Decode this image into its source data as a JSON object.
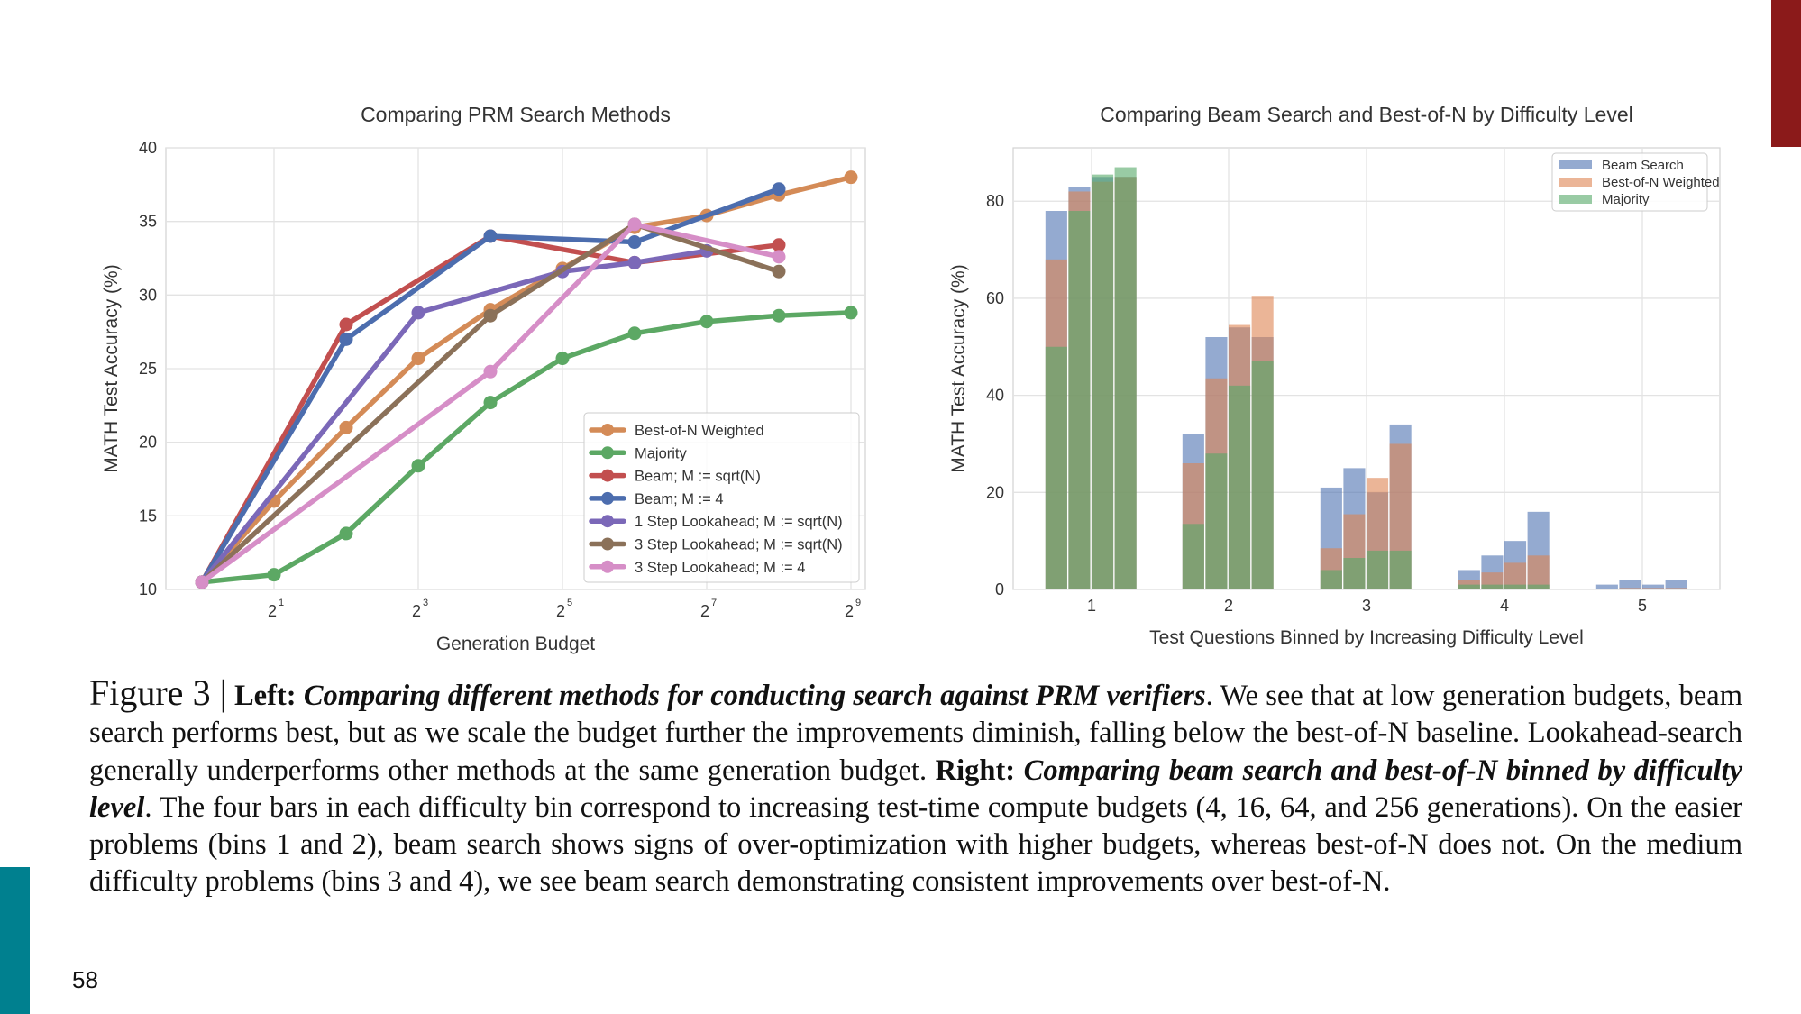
{
  "page": {
    "number": "58"
  },
  "colors": {
    "best_of_n_weighted": "#d48b57",
    "majority": "#5ca864",
    "beam_sqrt": "#c24f4f",
    "beam_4": "#4c6dae",
    "lookahead1_sqrt": "#7b68b8",
    "lookahead3_sqrt": "#8b7159",
    "lookahead3_4": "#d68ec7",
    "beam_bar": "#4c72b0",
    "bon_bar": "#dd8452",
    "majority_bar": "#55a868",
    "red_accent": "#8b1a1a",
    "teal_accent": "#00808f"
  },
  "chart_data": [
    {
      "type": "line",
      "title": "Comparing PRM Search Methods",
      "xlabel": "Generation Budget",
      "ylabel": "MATH Test Accuracy (%)",
      "xscale": "log2",
      "xlim": [
        -0.5,
        9.2
      ],
      "ylim": [
        10,
        40
      ],
      "xticks": [
        {
          "exp": 1,
          "base": "2",
          "sup": "1"
        },
        {
          "exp": 3,
          "base": "2",
          "sup": "3"
        },
        {
          "exp": 5,
          "base": "2",
          "sup": "5"
        },
        {
          "exp": 7,
          "base": "2",
          "sup": "7"
        },
        {
          "exp": 9,
          "base": "2",
          "sup": "9"
        }
      ],
      "yticks": [
        "10",
        "15",
        "20",
        "25",
        "30",
        "35",
        "40"
      ],
      "legend_position": "lower-right",
      "series": [
        {
          "name": "Best-of-N Weighted",
          "color_key": "best_of_n_weighted",
          "x": [
            0,
            1,
            2,
            3,
            4,
            5,
            6,
            7,
            8,
            9
          ],
          "y": [
            10.5,
            16.0,
            21.0,
            25.7,
            29.0,
            31.8,
            34.6,
            35.4,
            36.8,
            38.0
          ]
        },
        {
          "name": "Majority",
          "color_key": "majority",
          "x": [
            0,
            1,
            2,
            3,
            4,
            5,
            6,
            7,
            8,
            9
          ],
          "y": [
            10.5,
            11.0,
            13.8,
            18.4,
            22.7,
            25.7,
            27.4,
            28.2,
            28.6,
            28.8
          ]
        },
        {
          "name": "Beam; M := sqrt(N)",
          "color_key": "beam_sqrt",
          "x": [
            0,
            2,
            4,
            6,
            8
          ],
          "y": [
            10.5,
            28.0,
            34.0,
            32.2,
            33.4
          ]
        },
        {
          "name": "Beam; M := 4",
          "color_key": "beam_4",
          "x": [
            0,
            2,
            4,
            6,
            8
          ],
          "y": [
            10.5,
            27.0,
            34.0,
            33.6,
            37.2
          ]
        },
        {
          "name": "1 Step Lookahead; M := sqrt(N)",
          "color_key": "lookahead1_sqrt",
          "x": [
            0,
            3,
            5,
            6,
            7
          ],
          "y": [
            10.5,
            28.8,
            31.6,
            32.2,
            33.0
          ]
        },
        {
          "name": "3 Step Lookahead; M := sqrt(N)",
          "color_key": "lookahead3_sqrt",
          "x": [
            0,
            4,
            6,
            8
          ],
          "y": [
            10.5,
            28.6,
            34.8,
            31.6
          ]
        },
        {
          "name": "3 Step Lookahead; M := 4",
          "color_key": "lookahead3_4",
          "x": [
            0,
            4,
            6,
            8
          ],
          "y": [
            10.5,
            24.8,
            34.8,
            32.6
          ]
        }
      ]
    },
    {
      "type": "bar",
      "title": "Comparing Beam Search and Best-of-N by Difficulty Level",
      "xlabel": "Test Questions Binned by Increasing Difficulty Level",
      "ylabel": "MATH Test Accuracy (%)",
      "categories": [
        "1",
        "2",
        "3",
        "4",
        "5"
      ],
      "ylim": [
        0,
        91
      ],
      "yticks": [
        "0",
        "20",
        "40",
        "60",
        "80"
      ],
      "bars_per_bin": 4,
      "budgets": [
        4,
        16,
        64,
        256
      ],
      "overlay": true,
      "legend_position": "top-right",
      "series": [
        {
          "name": "Beam Search",
          "color_key": "beam_bar",
          "values": [
            [
              78,
              83,
              85,
              85
            ],
            [
              32,
              52,
              54,
              52
            ],
            [
              21,
              25,
              20,
              34
            ],
            [
              4,
              7,
              10,
              16
            ],
            [
              1,
              2,
              1,
              2
            ]
          ]
        },
        {
          "name": "Best-of-N Weighted",
          "color_key": "bon_bar",
          "values": [
            [
              68,
              82,
              84,
              85
            ],
            [
              26,
              43.5,
              54.5,
              60.5
            ],
            [
              8.5,
              15.5,
              23,
              30
            ],
            [
              2,
              3.5,
              5.5,
              7
            ],
            [
              0,
              0.3,
              0.3,
              0.3
            ]
          ]
        },
        {
          "name": "Majority",
          "color_key": "majority_bar",
          "values": [
            [
              50,
              78,
              85.5,
              87
            ],
            [
              13.5,
              28,
              42,
              47
            ],
            [
              4,
              6.5,
              8,
              8
            ],
            [
              1,
              1,
              1,
              1
            ],
            [
              0,
              0,
              0,
              0
            ]
          ]
        }
      ]
    }
  ],
  "caption": {
    "figure_label": "Figure 3 |",
    "left_label": "Left:",
    "left_title": "Comparing different methods for conducting search against PRM verifiers",
    "left_text": ". We see that at low generation budgets, beam search performs best, but as we scale the budget further the improvements diminish, falling below the best-of-N baseline. Lookahead-search generally underperforms other methods at the same generation budget.",
    "right_label": "Right:",
    "right_title": "Comparing beam search and best-of-N binned by difficulty level",
    "right_text": ". The four bars in each difficulty bin correspond to increasing test-time compute budgets (4, 16, 64, and 256 generations). On the easier problems (bins 1 and 2), beam search shows signs of over-optimization with higher budgets, whereas best-of-N does not. On the medium difficulty problems (bins 3 and 4), we see beam search demonstrating consistent improvements over best-of-N."
  }
}
